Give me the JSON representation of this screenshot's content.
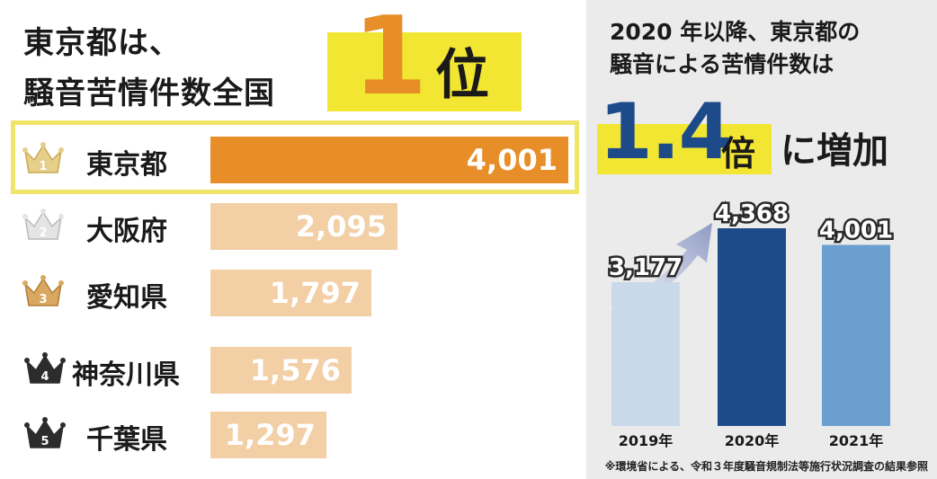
{
  "headline": {
    "line1": "東京都は、",
    "line2": "騒音苦情件数全国",
    "rank_number": "1",
    "rank_unit": "位"
  },
  "colors": {
    "highlight_bar": "#e88e28",
    "other_bar": "#f2cfa5",
    "yellow": "#f2e632",
    "bar_2019": "#c9d9ea",
    "bar_2020": "#1d4b8a",
    "bar_2021": "#6b9fd0"
  },
  "panel": {
    "title_line1": "2020 年以降、東京都の",
    "title_line2": "騒音による苦情件数は",
    "multiplier": "1.4",
    "multiplier_unit": "倍",
    "multiplier_rest": "に増加"
  },
  "source": "※環境省による、令和３年度騒音規制法等施行状況調査の結果参照",
  "chart_data": [
    {
      "type": "bar",
      "orientation": "horizontal",
      "categories": [
        "東京都",
        "大阪府",
        "愛知県",
        "神奈川県",
        "千葉県"
      ],
      "ranks": [
        "1",
        "2",
        "3",
        "4",
        "5"
      ],
      "values": [
        4001,
        2095,
        1797,
        1576,
        1297
      ],
      "labels": [
        "4,001",
        "2,095",
        "1,797",
        "1,576",
        "1,297"
      ]
    },
    {
      "type": "bar",
      "categories": [
        "2019年",
        "2020年",
        "2021年"
      ],
      "values": [
        3177,
        4368,
        4001
      ],
      "labels": [
        "3,177",
        "4,368",
        "4,001"
      ]
    }
  ]
}
